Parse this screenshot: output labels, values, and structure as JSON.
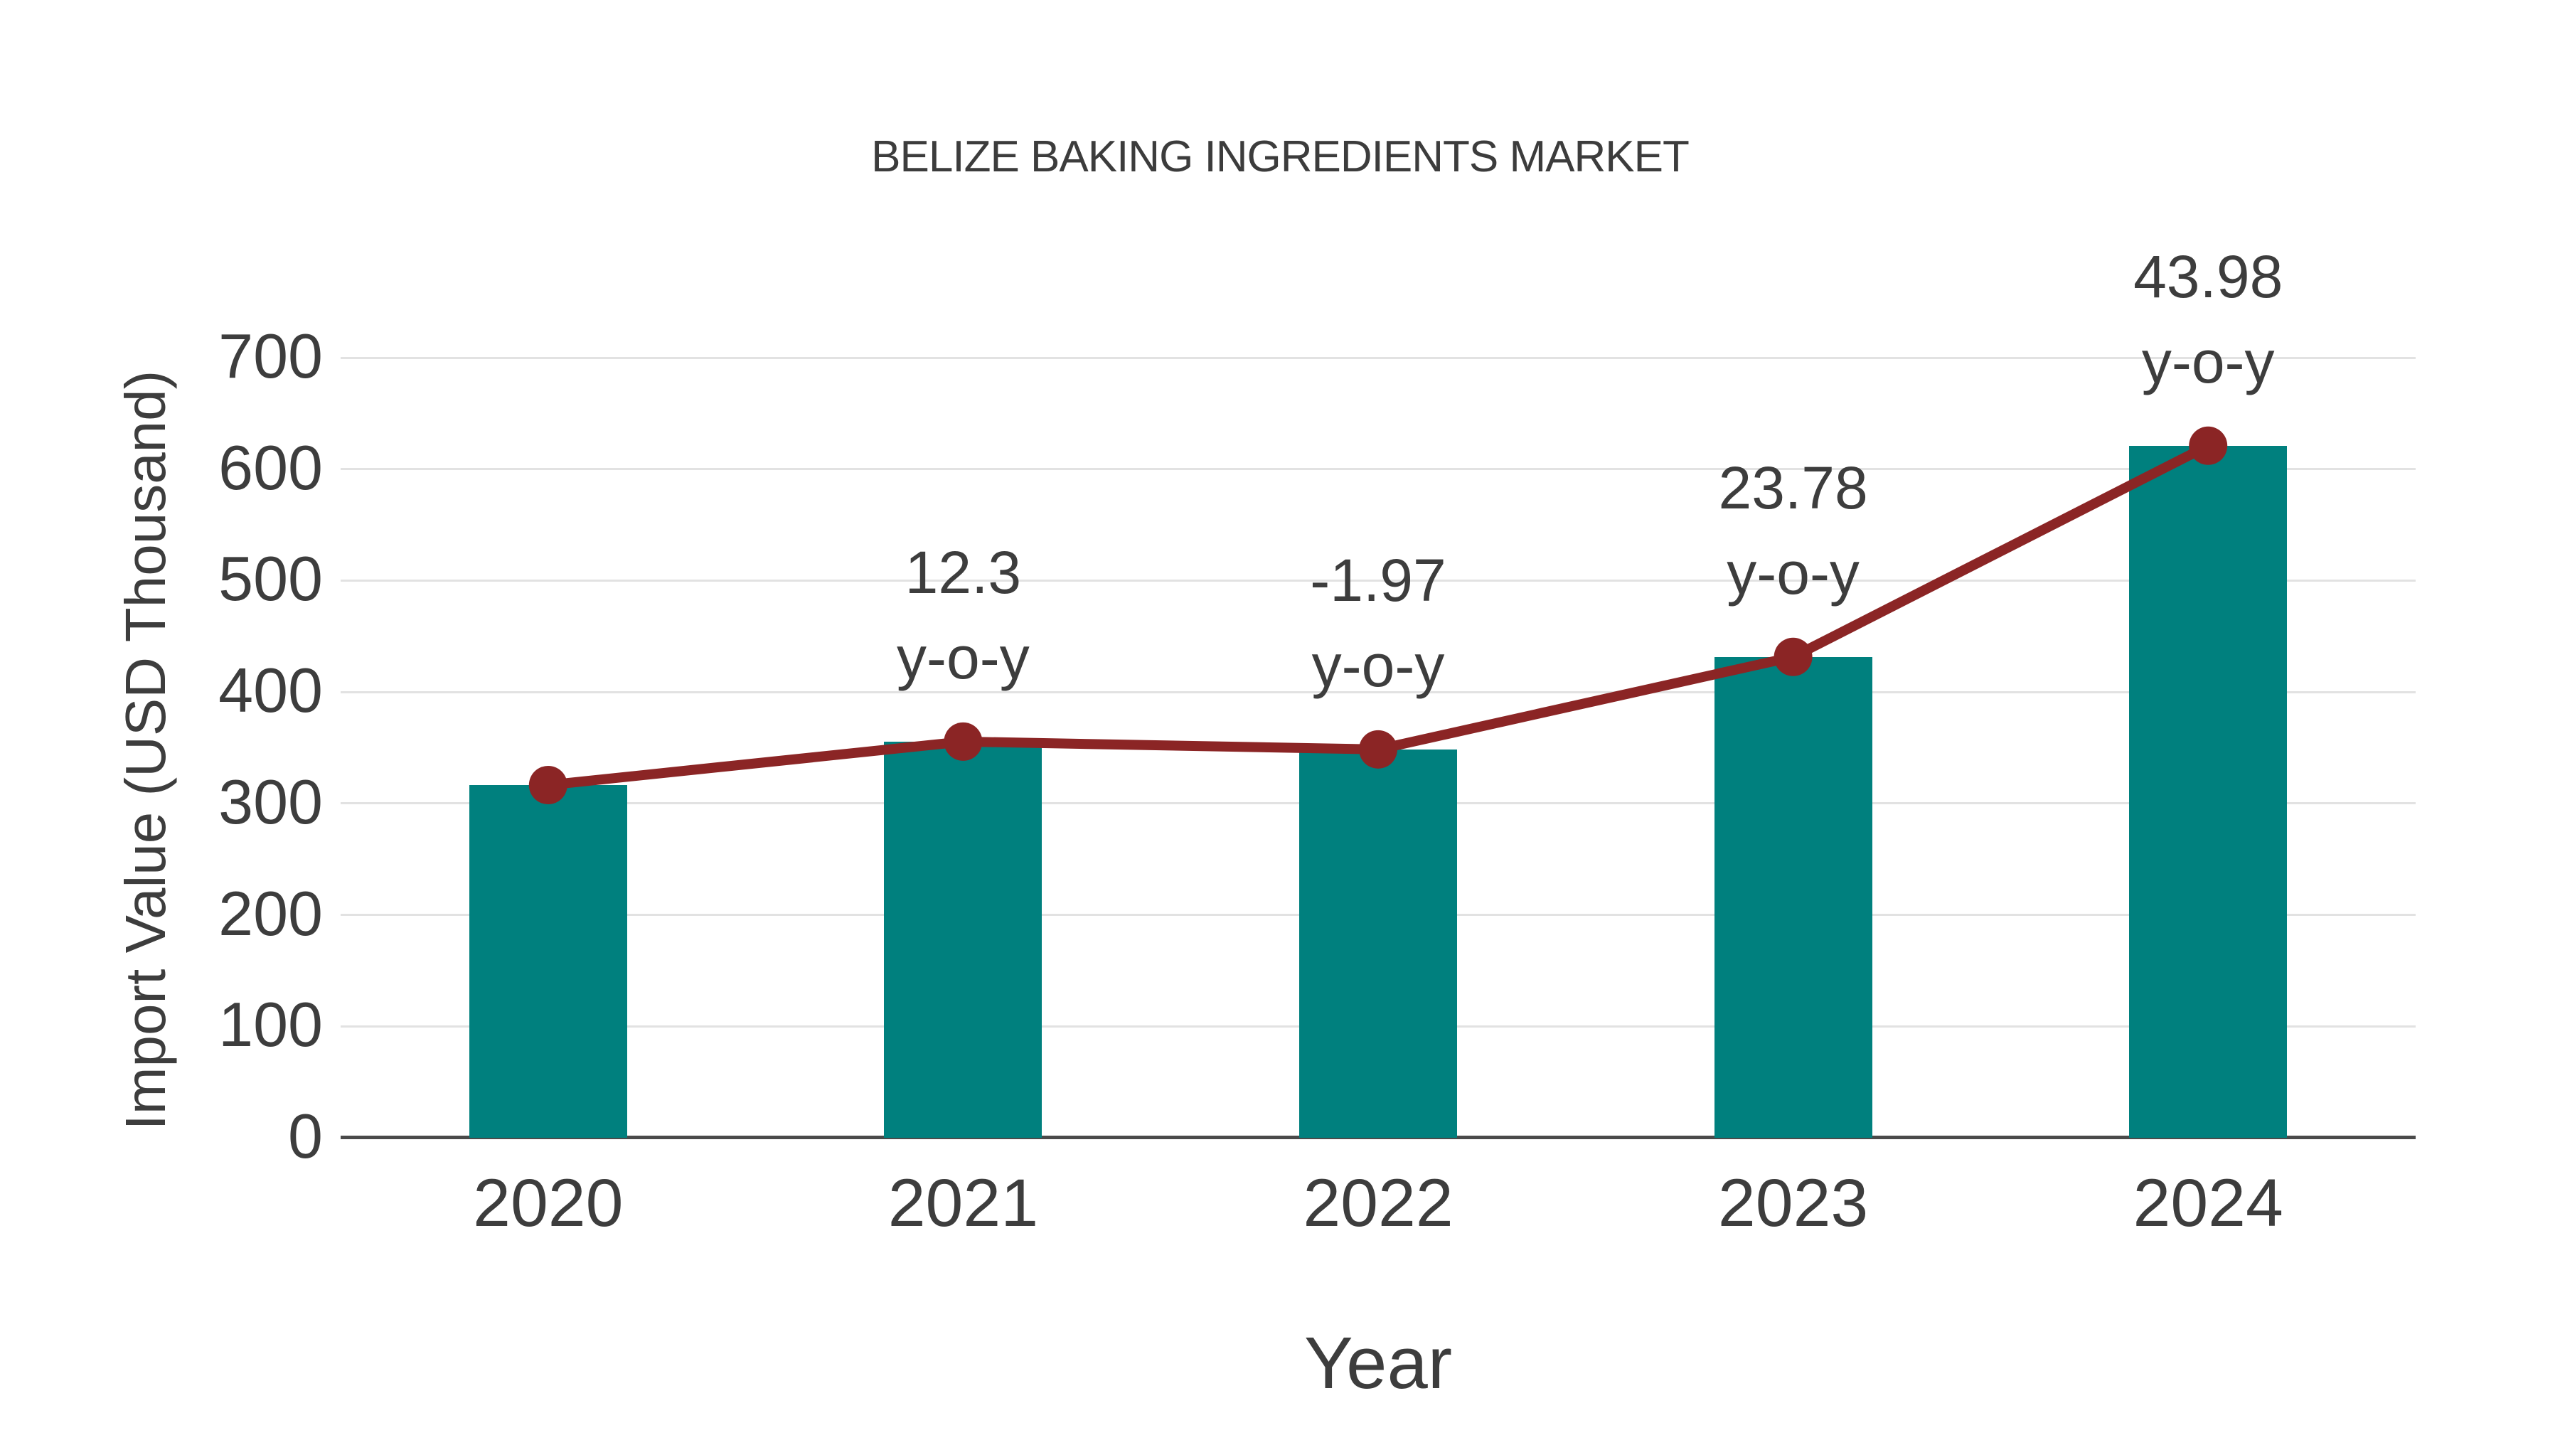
{
  "title": "BELIZE BAKING INGREDIENTS MARKET",
  "chart_data": {
    "type": "bar",
    "title": "BELIZE BAKING INGREDIENTS MARKET",
    "categories": [
      "2020",
      "2021",
      "2022",
      "2023",
      "2024"
    ],
    "series": [
      {
        "name": "Import Value bars",
        "type": "bar",
        "values": [
          316.5,
          355.5,
          348.5,
          431.5,
          621
        ]
      },
      {
        "name": "Import Value trend line",
        "type": "line",
        "values": [
          316.5,
          355.5,
          348.5,
          431.5,
          621
        ]
      }
    ],
    "annotations": {
      "values": [
        "",
        "12.3",
        "-1.97",
        "23.78",
        "43.98"
      ],
      "suffix_line": "y-o-y"
    },
    "xlabel": "Year",
    "ylabel": "Import Value (USD Thousand)",
    "ylim": [
      0,
      700
    ],
    "yticks": [
      0,
      100,
      200,
      300,
      400,
      500,
      600,
      700
    ],
    "grid": true,
    "legend": "none",
    "colors": {
      "bar": "#00807e",
      "line": "#8b2525",
      "marker": "#8b2525",
      "text": "#3d3d3d",
      "gridline": "#e2e2e2",
      "axis_line": "#4a4a4a",
      "background": "#ffffff"
    }
  }
}
